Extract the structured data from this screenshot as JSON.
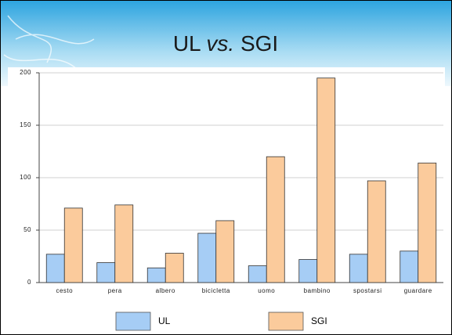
{
  "chart_data": {
    "type": "bar",
    "title": [
      "UL",
      "vs.",
      "SGI"
    ],
    "categories": [
      "cesto",
      "pera",
      "albero",
      "bicicletta",
      "uomo",
      "bambino",
      "spostarsi",
      "guardare"
    ],
    "series": [
      {
        "name": "UL",
        "color": "#a6cdf5",
        "values": [
          27,
          19,
          14,
          47,
          16,
          22,
          27,
          30
        ]
      },
      {
        "name": "SGI",
        "color": "#fbcb9c",
        "values": [
          71,
          74,
          28,
          59,
          120,
          195,
          97,
          114
        ]
      }
    ],
    "ylim": [
      0,
      200
    ],
    "yticks": [
      0,
      50,
      100,
      150,
      200
    ],
    "grid": true
  }
}
